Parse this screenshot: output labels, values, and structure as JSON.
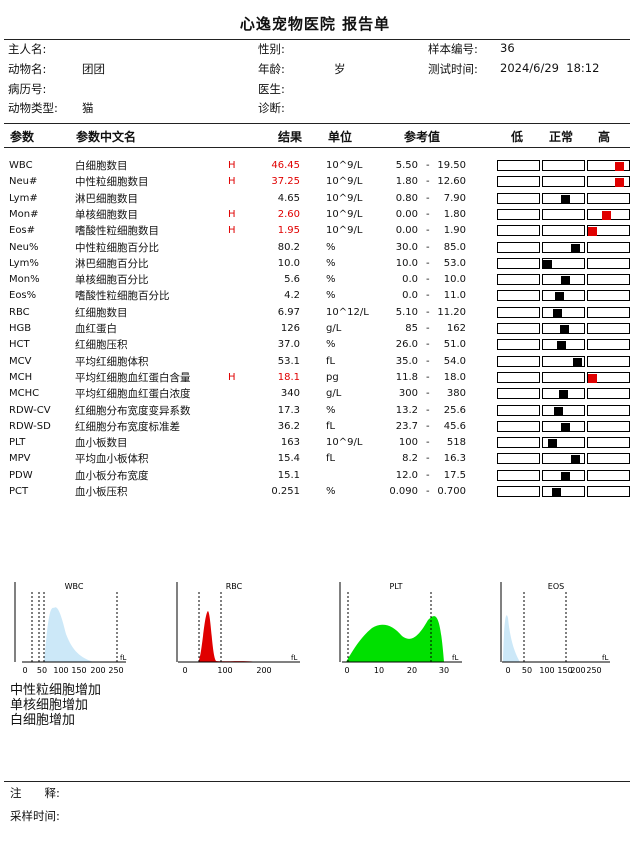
{
  "title": "心逸宠物医院 报告单",
  "info": {
    "owner_label": "主人名:",
    "owner_value": "",
    "gender_label": "性别:",
    "gender_value": "",
    "sample_label": "样本编号:",
    "sample_value": "36",
    "animal_label": "动物名:",
    "animal_value": "团团",
    "age_label": "年龄:",
    "age_value": "岁",
    "time_label": "测试时间:",
    "time_value": "2024/6/29  18:12",
    "record_label": "病历号:",
    "record_value": "",
    "doctor_label": "医生:",
    "doctor_value": "",
    "type_label": "动物类型:",
    "type_value": "猫",
    "diag_label": "诊断:",
    "diag_value": ""
  },
  "table_header": {
    "param": "参数",
    "param_cn": "参数中文名",
    "result": "结果",
    "unit": "单位",
    "ref": "参考值",
    "low": "低",
    "normal": "正常",
    "high": "高"
  },
  "colors": {
    "high": "#e00000",
    "normal_mark": "#000000",
    "wbc_fill": "#cce8f8",
    "rbc_fill": "#e00000",
    "plt_fill": "#00e000",
    "eos_fill": "#cce8f8"
  },
  "rows": [
    {
      "code": "WBC",
      "cn": "白细胞数目",
      "flag": "H",
      "result": "46.45",
      "unit": "10^9/L",
      "lo": "5.50",
      "hi": "19.50",
      "level": "high",
      "pos": 0.85
    },
    {
      "code": "Neu#",
      "cn": "中性粒细胞数目",
      "flag": "H",
      "result": "37.25",
      "unit": "10^9/L",
      "lo": "1.80",
      "hi": "12.60",
      "level": "high",
      "pos": 0.85
    },
    {
      "code": "Lym#",
      "cn": "淋巴细胞数目",
      "flag": "",
      "result": "4.65",
      "unit": "10^9/L",
      "lo": "0.80",
      "hi": "7.90",
      "level": "normal",
      "pos": 0.56
    },
    {
      "code": "Mon#",
      "cn": "单核细胞数目",
      "flag": "H",
      "result": "2.60",
      "unit": "10^9/L",
      "lo": "0.00",
      "hi": "1.80",
      "level": "high",
      "pos": 0.45
    },
    {
      "code": "Eos#",
      "cn": "嗜酸性粒细胞数目",
      "flag": "H",
      "result": "1.95",
      "unit": "10^9/L",
      "lo": "0.00",
      "hi": "1.90",
      "level": "high",
      "pos": 0.0
    },
    {
      "code": "Neu%",
      "cn": "中性粒细胞百分比",
      "flag": "",
      "result": "80.2",
      "unit": "%",
      "lo": "30.0",
      "hi": "85.0",
      "level": "normal",
      "pos": 0.88
    },
    {
      "code": "Lym%",
      "cn": "淋巴细胞百分比",
      "flag": "",
      "result": "10.0",
      "unit": "%",
      "lo": "10.0",
      "hi": "53.0",
      "level": "normal",
      "pos": 0.0
    },
    {
      "code": "Mon%",
      "cn": "单核细胞百分比",
      "flag": "",
      "result": "5.6",
      "unit": "%",
      "lo": "0.0",
      "hi": "10.0",
      "level": "normal",
      "pos": 0.56
    },
    {
      "code": "Eos%",
      "cn": "嗜酸性粒细胞百分比",
      "flag": "",
      "result": "4.2",
      "unit": "%",
      "lo": "0.0",
      "hi": "11.0",
      "level": "normal",
      "pos": 0.38
    },
    {
      "code": "RBC",
      "cn": "红细胞数目",
      "flag": "",
      "result": "6.97",
      "unit": "10^12/L",
      "lo": "5.10",
      "hi": "11.20",
      "level": "normal",
      "pos": 0.31
    },
    {
      "code": "HGB",
      "cn": "血红蛋白",
      "flag": "",
      "result": "126",
      "unit": "g/L",
      "lo": "85",
      "hi": "162",
      "level": "normal",
      "pos": 0.53
    },
    {
      "code": "HCT",
      "cn": "红细胞压积",
      "flag": "",
      "result": "37.0",
      "unit": "%",
      "lo": "26.0",
      "hi": "51.0",
      "level": "normal",
      "pos": 0.44
    },
    {
      "code": "MCV",
      "cn": "平均红细胞体积",
      "flag": "",
      "result": "53.1",
      "unit": "fL",
      "lo": "35.0",
      "hi": "54.0",
      "level": "normal",
      "pos": 0.95
    },
    {
      "code": "MCH",
      "cn": "平均红细胞血红蛋白含量",
      "flag": "H",
      "result": "18.1",
      "unit": "pg",
      "lo": "11.8",
      "hi": "18.0",
      "level": "high",
      "pos": 0.0
    },
    {
      "code": "MCHC",
      "cn": "平均红细胞血红蛋白浓度",
      "flag": "",
      "result": "340",
      "unit": "g/L",
      "lo": "300",
      "hi": "380",
      "level": "normal",
      "pos": 0.5
    },
    {
      "code": "RDW-CV",
      "cn": "红细胞分布宽度变异系数",
      "flag": "",
      "result": "17.3",
      "unit": "%",
      "lo": "13.2",
      "hi": "25.6",
      "level": "normal",
      "pos": 0.33
    },
    {
      "code": "RDW-SD",
      "cn": "红细胞分布宽度标准差",
      "flag": "",
      "result": "36.2",
      "unit": "fL",
      "lo": "23.7",
      "hi": "45.6",
      "level": "normal",
      "pos": 0.57
    },
    {
      "code": "PLT",
      "cn": "血小板数目",
      "flag": "",
      "result": "163",
      "unit": "10^9/L",
      "lo": "100",
      "hi": "518",
      "level": "normal",
      "pos": 0.15
    },
    {
      "code": "MPV",
      "cn": "平均血小板体积",
      "flag": "",
      "result": "15.4",
      "unit": "fL",
      "lo": "8.2",
      "hi": "16.3",
      "level": "normal",
      "pos": 0.89
    },
    {
      "code": "PDW",
      "cn": "血小板分布宽度",
      "flag": "",
      "result": "15.1",
      "unit": "",
      "lo": "12.0",
      "hi": "17.5",
      "level": "normal",
      "pos": 0.56
    },
    {
      "code": "PCT",
      "cn": "血小板压积",
      "flag": "",
      "result": "0.251",
      "unit": "%",
      "lo": "0.090",
      "hi": "0.700",
      "level": "normal",
      "pos": 0.27
    }
  ],
  "range_dash": "-",
  "histograms": {
    "wbc": {
      "title": "WBC",
      "unit": "fL",
      "ticks": [
        "0",
        "50",
        "100",
        "150",
        "200",
        "250"
      ]
    },
    "rbc": {
      "title": "RBC",
      "unit": "fL",
      "ticks": [
        "0",
        "100",
        "200"
      ]
    },
    "plt": {
      "title": "PLT",
      "unit": "fL",
      "ticks": [
        "0",
        "10",
        "20",
        "30"
      ]
    },
    "eos": {
      "title": "EOS",
      "unit": "fL",
      "ticks": [
        "0",
        "50",
        "100",
        "150",
        "200",
        "250"
      ]
    }
  },
  "remarks": [
    "中性粒细胞增加",
    "单核细胞增加",
    "白细胞增加"
  ],
  "footer": {
    "note_label": "注　　释:",
    "sample_time_label": "采样时间:"
  }
}
